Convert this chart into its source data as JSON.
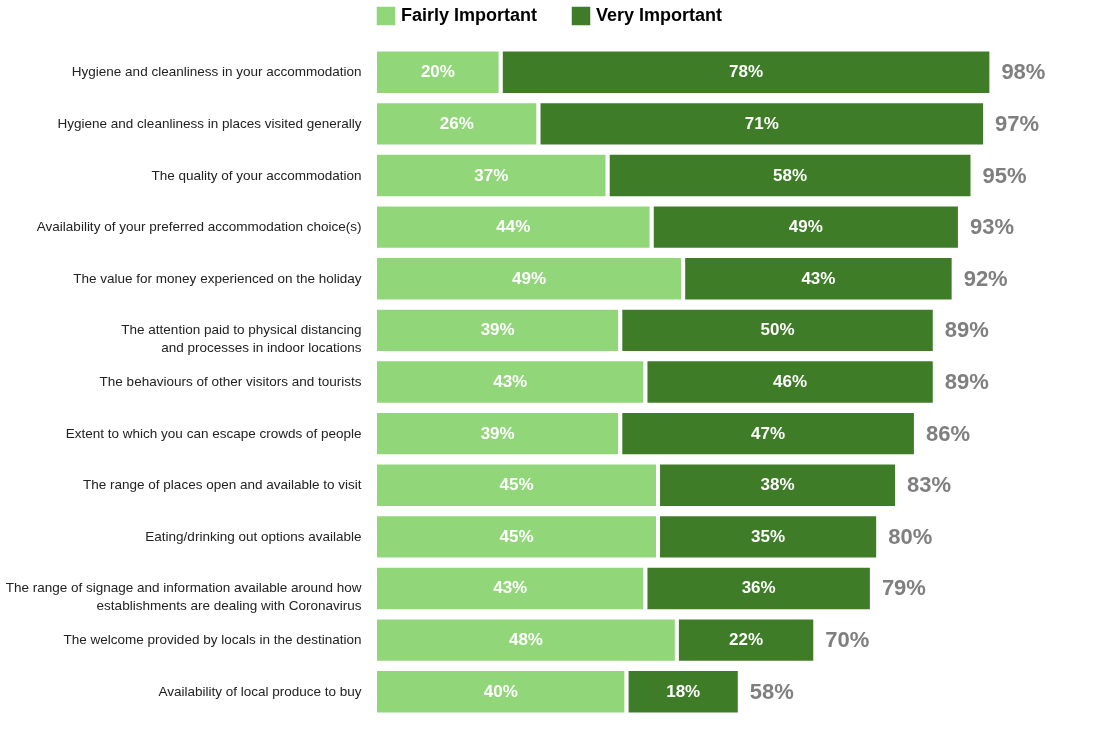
{
  "chart_data": {
    "type": "bar",
    "orientation": "horizontal",
    "stacked": true,
    "legend": "top",
    "categories": [
      "Hygiene and cleanliness in your accommodation",
      "Hygiene and cleanliness in places visited generally",
      "The quality of your accommodation",
      "Availability of your preferred accommodation choice(s)",
      "The value for money experienced on the holiday",
      "The attention paid to physical distancing and processes in indoor locations",
      "The behaviours of other visitors and tourists",
      "Extent to which you can escape crowds of people",
      "The range of places open and available to visit",
      "Eating/drinking out options available",
      "The range of signage and information available around how establishments are dealing with Coronavirus",
      "The welcome provided by locals in the destination",
      "Availability of local produce to buy"
    ],
    "series": [
      {
        "name": "Fairly Important",
        "color": "#92d67a",
        "values": [
          20,
          26,
          37,
          44,
          49,
          39,
          43,
          39,
          45,
          45,
          43,
          48,
          40
        ],
        "value_labels": [
          "20%",
          "26%",
          "37%",
          "44%",
          "49%",
          "39%",
          "43%",
          "39%",
          "45%",
          "45%",
          "43%",
          "48%",
          "40%"
        ]
      },
      {
        "name": "Very Important",
        "color": "#3e7c28",
        "values": [
          78,
          71,
          58,
          49,
          43,
          50,
          46,
          47,
          38,
          35,
          36,
          22,
          18
        ],
        "value_labels": [
          "78%",
          "71%",
          "58%",
          "49%",
          "43%",
          "50%",
          "46%",
          "47%",
          "38%",
          "35%",
          "36%",
          "22%",
          "18%"
        ]
      }
    ],
    "totals": [
      "98%",
      "97%",
      "95%",
      "93%",
      "92%",
      "89%",
      "89%",
      "86%",
      "83%",
      "80%",
      "79%",
      "70%",
      "58%"
    ]
  }
}
